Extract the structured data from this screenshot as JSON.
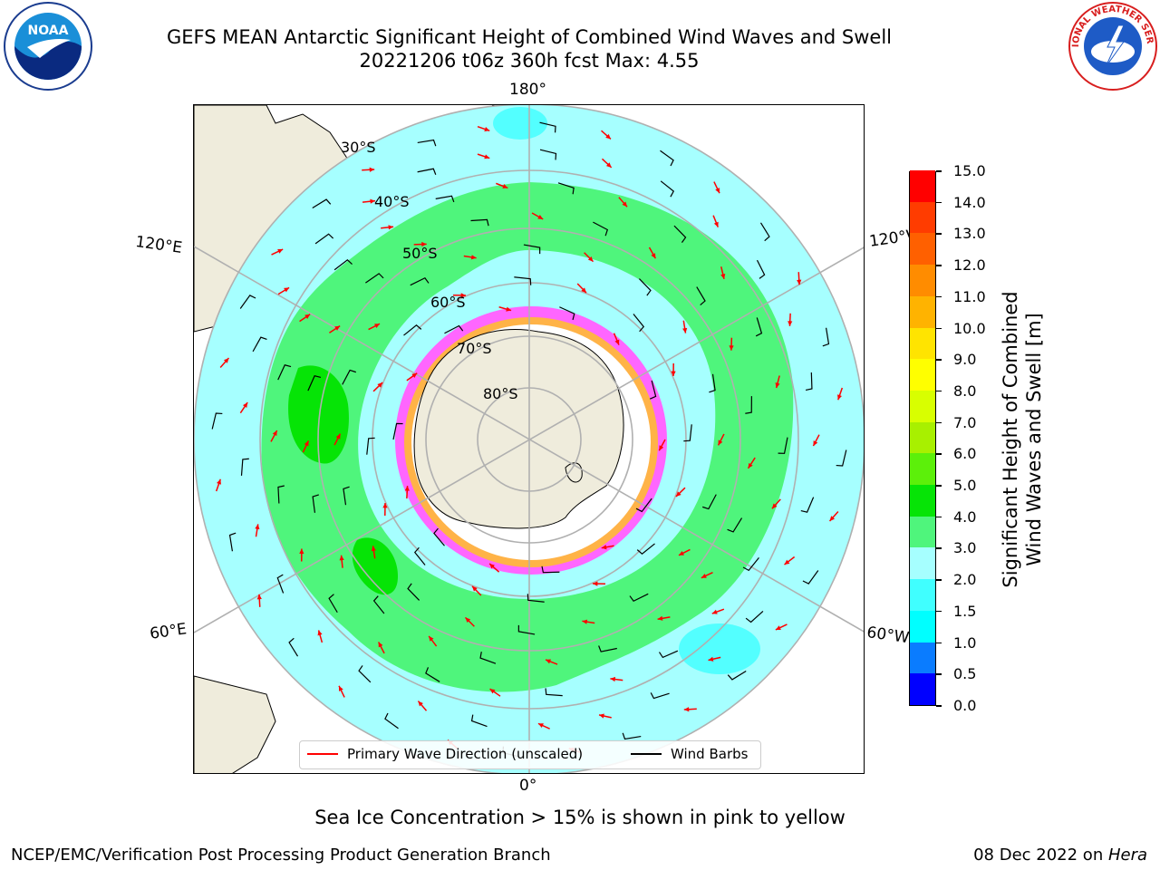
{
  "header": {
    "title_line1": "GEFS MEAN Antarctic Significant Height of Combined Wind Waves and Swell",
    "title_line2": "20221206 t06z 360h fcst   Max: 4.55"
  },
  "logos": {
    "left": "noaa-logo",
    "left_text": "NOAA",
    "right": "national-weather-service-logo",
    "right_text": "NATIONAL WEATHER SERVICE"
  },
  "map": {
    "projection": "south-polar-stereographic",
    "longitude_labels": {
      "top": "180°",
      "bottom": "0°",
      "upper_left": "120°E",
      "upper_right": "120°W",
      "lower_left": "60°E",
      "lower_right": "60°W"
    },
    "latitude_labels": [
      "30°S",
      "40°S",
      "50°S",
      "60°S",
      "70°S",
      "80°S"
    ],
    "colors": {
      "land": "#efecdc",
      "wave_2_3m": "#a6ffff",
      "wave_1_5_2m": "#53ffff",
      "wave_3_4m": "#4ff57c",
      "wave_4_5m": "#06e406",
      "ice_pink": "#ff66ff",
      "ice_orange": "#ffb347",
      "wave_arrows": "#ff0000",
      "wind_barbs": "#000000"
    }
  },
  "colorbar": {
    "label": "Significant Height of Combined\nWind Waves and Swell [m]",
    "ticks": [
      "0.0",
      "0.5",
      "1.0",
      "1.5",
      "2.0",
      "3.0",
      "4.0",
      "5.0",
      "6.0",
      "7.0",
      "8.0",
      "9.0",
      "10.0",
      "11.0",
      "12.0",
      "13.0",
      "14.0",
      "15.0"
    ],
    "colors": [
      "#0000ff",
      "#0a7cff",
      "#00ffff",
      "#40ffff",
      "#a6ffff",
      "#4ff57c",
      "#06e406",
      "#5cf00a",
      "#a8f000",
      "#d8ff00",
      "#ffff00",
      "#ffe400",
      "#ffb300",
      "#ff8c00",
      "#ff6000",
      "#ff3c00",
      "#ff0000"
    ]
  },
  "legend": {
    "wave_direction": "Primary Wave Direction (unscaled)",
    "wind_barbs": "Wind Barbs",
    "wave_color": "#ff0000",
    "barb_color": "#000000"
  },
  "notes": {
    "sea_ice": "Sea Ice Concentration > 15% is shown in pink to yellow"
  },
  "footer": {
    "left": "NCEP/EMC/Verification Post Processing Product Generation Branch",
    "date": "08 Dec 2022 on ",
    "host": "Hera"
  }
}
